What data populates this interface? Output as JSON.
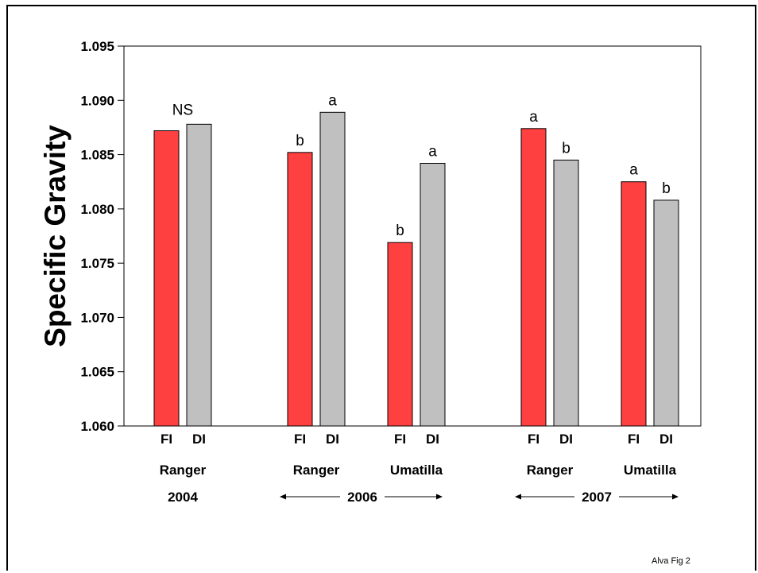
{
  "chart_data": {
    "type": "bar",
    "title": "",
    "ylabel": "Specific Gravity",
    "xlabel": "",
    "ylim": [
      1.06,
      1.095
    ],
    "yticks": [
      "1.060",
      "1.065",
      "1.070",
      "1.075",
      "1.080",
      "1.085",
      "1.090",
      "1.095"
    ],
    "grid": false,
    "series": [
      {
        "name": "FI",
        "color": "#ff4040"
      },
      {
        "name": "DI",
        "color": "#c0c0c0"
      }
    ],
    "groups": [
      {
        "cultivar": "Ranger",
        "year": "2004",
        "FI": 1.0872,
        "DI": 1.0878,
        "FI_label": "",
        "DI_label": "",
        "group_label": "NS"
      },
      {
        "cultivar": "Ranger",
        "year": "2006",
        "FI": 1.0852,
        "DI": 1.0889,
        "FI_label": "b",
        "DI_label": "a",
        "group_label": ""
      },
      {
        "cultivar": "Umatilla",
        "year": "2006",
        "FI": 1.0769,
        "DI": 1.0842,
        "FI_label": "b",
        "DI_label": "a",
        "group_label": ""
      },
      {
        "cultivar": "Ranger",
        "year": "2007",
        "FI": 1.0874,
        "DI": 1.0845,
        "FI_label": "a",
        "DI_label": "b",
        "group_label": ""
      },
      {
        "cultivar": "Umatilla",
        "year": "2007",
        "FI": 1.0825,
        "DI": 1.0808,
        "FI_label": "a",
        "DI_label": "b",
        "group_label": ""
      }
    ],
    "year_labels": [
      {
        "text": "2004",
        "arrows": false
      },
      {
        "text": "2006",
        "arrows": true
      },
      {
        "text": "2007",
        "arrows": true
      }
    ],
    "footnote": "Alva Fig 2"
  }
}
